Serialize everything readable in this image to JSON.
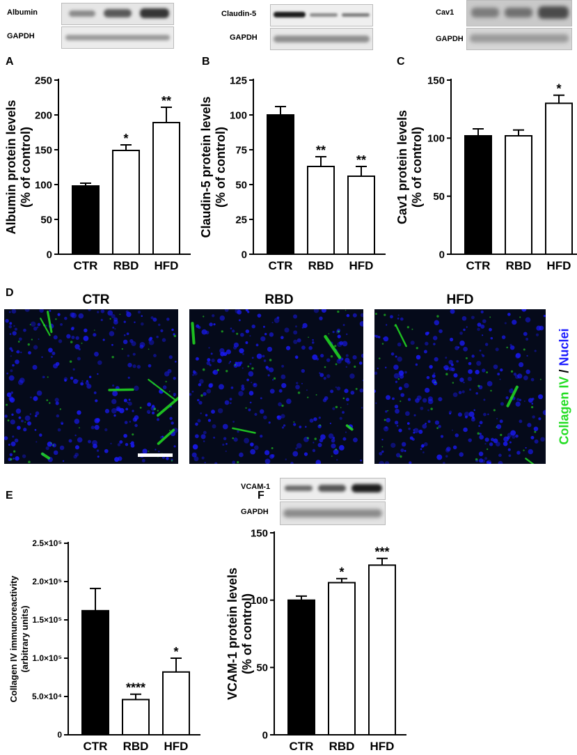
{
  "blots": {
    "albumin": {
      "target": "Albumin",
      "loading": "GAPDH"
    },
    "claudin": {
      "target": "Claudin-5",
      "loading": "GAPDH"
    },
    "cav1": {
      "target": "Cav1",
      "loading": "GAPDH"
    },
    "vcam": {
      "target": "VCAM-1",
      "loading": "GAPDH"
    }
  },
  "panels": {
    "A": "A",
    "B": "B",
    "C": "C",
    "D": "D",
    "E": "E",
    "F": "F"
  },
  "micrographs": {
    "titles": [
      "CTR",
      "RBD",
      "HFD"
    ],
    "stain_green": "Collagen IV",
    "stain_sep": " / ",
    "stain_blue": "Nuclei",
    "colors": {
      "green": "#22dd22",
      "blue": "#1a1aff"
    }
  },
  "chart_data": [
    {
      "panel": "A",
      "type": "bar",
      "categories": [
        "CTR",
        "RBD",
        "HFD"
      ],
      "values": [
        98,
        149,
        189
      ],
      "errors": [
        4,
        8,
        22
      ],
      "significance": [
        "",
        "*",
        "**"
      ],
      "fills": [
        "#000000",
        "#ffffff",
        "#ffffff"
      ],
      "ylabel_lines": [
        "Albumin protein levels",
        "(% of control)"
      ],
      "ylim": [
        0,
        250
      ],
      "yticks": [
        0,
        50,
        100,
        150,
        200,
        250
      ],
      "ytick_labels": [
        "0",
        "50",
        "100",
        "150",
        "200",
        "250"
      ]
    },
    {
      "panel": "B",
      "type": "bar",
      "categories": [
        "CTR",
        "RBD",
        "HFD"
      ],
      "values": [
        100,
        63,
        56
      ],
      "errors": [
        6,
        7,
        7
      ],
      "significance": [
        "",
        "**",
        "**"
      ],
      "fills": [
        "#000000",
        "#ffffff",
        "#ffffff"
      ],
      "ylabel_lines": [
        "Claudin-5 protein levels",
        "(% of control)"
      ],
      "ylim": [
        0,
        125
      ],
      "yticks": [
        0,
        25,
        50,
        75,
        100,
        125
      ],
      "ytick_labels": [
        "0",
        "25",
        "50",
        "75",
        "100",
        "125"
      ]
    },
    {
      "panel": "C",
      "type": "bar",
      "categories": [
        "CTR",
        "RBD",
        "HFD"
      ],
      "values": [
        102,
        102,
        130
      ],
      "errors": [
        6,
        5,
        7
      ],
      "significance": [
        "",
        "",
        "*"
      ],
      "fills": [
        "#000000",
        "#ffffff",
        "#ffffff"
      ],
      "ylabel_lines": [
        "Cav1 protein levels",
        "(% of control)"
      ],
      "ylim": [
        0,
        150
      ],
      "yticks": [
        0,
        50,
        100,
        150
      ],
      "ytick_labels": [
        "0",
        "50",
        "100",
        "150"
      ]
    },
    {
      "panel": "E",
      "type": "bar",
      "categories": [
        "CTR",
        "RBD",
        "HFD"
      ],
      "values": [
        162000,
        46000,
        82000
      ],
      "errors": [
        29000,
        7000,
        18000
      ],
      "significance": [
        "",
        "****",
        "*"
      ],
      "fills": [
        "#000000",
        "#ffffff",
        "#ffffff"
      ],
      "ylabel_lines": [
        "Collagen IV immunoreactivity",
        "(arbitrary units)"
      ],
      "ylim": [
        0,
        250000
      ],
      "yticks": [
        0,
        50000,
        100000,
        150000,
        200000,
        250000
      ],
      "ytick_labels": [
        "0",
        "5.0×10⁴",
        "1.0×10⁵",
        "1.5×10⁵",
        "2.0×10⁵",
        "2.5×10⁵"
      ]
    },
    {
      "panel": "F",
      "type": "bar",
      "categories": [
        "CTR",
        "RBD",
        "HFD"
      ],
      "values": [
        100,
        113,
        126
      ],
      "errors": [
        3,
        3,
        5
      ],
      "significance": [
        "",
        "*",
        "***"
      ],
      "fills": [
        "#000000",
        "#ffffff",
        "#ffffff"
      ],
      "ylabel_lines": [
        "VCAM-1 protein levels",
        "(% of control)"
      ],
      "ylim": [
        0,
        150
      ],
      "yticks": [
        0,
        50,
        100,
        150
      ],
      "ytick_labels": [
        "0",
        "50",
        "100",
        "150"
      ]
    }
  ]
}
